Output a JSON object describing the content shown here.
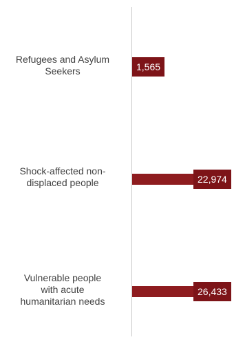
{
  "chart_data": {
    "type": "bar",
    "orientation": "horizontal",
    "categories": [
      "Refugees and Asylum Seekers",
      "Shock-affected non-displaced people",
      "Vulnerable people with acute humanitarian needs"
    ],
    "category_labels": [
      "Refugees and Asylum\nSeekers",
      "Shock-affected non-\ndisplaced people",
      "Vulnerable people\nwith acute\nhumanitarian needs"
    ],
    "values": [
      1565,
      22974,
      26433
    ],
    "value_labels": [
      "1,565",
      "22,974",
      "26,433"
    ],
    "bar_color": "#8e1c1f",
    "label_bg_color": "#7d1418",
    "label_text_color": "#ffffff",
    "category_text_color": "#404040",
    "axis_line_color": "#c8c8c8",
    "grid": false,
    "legend": "none"
  }
}
